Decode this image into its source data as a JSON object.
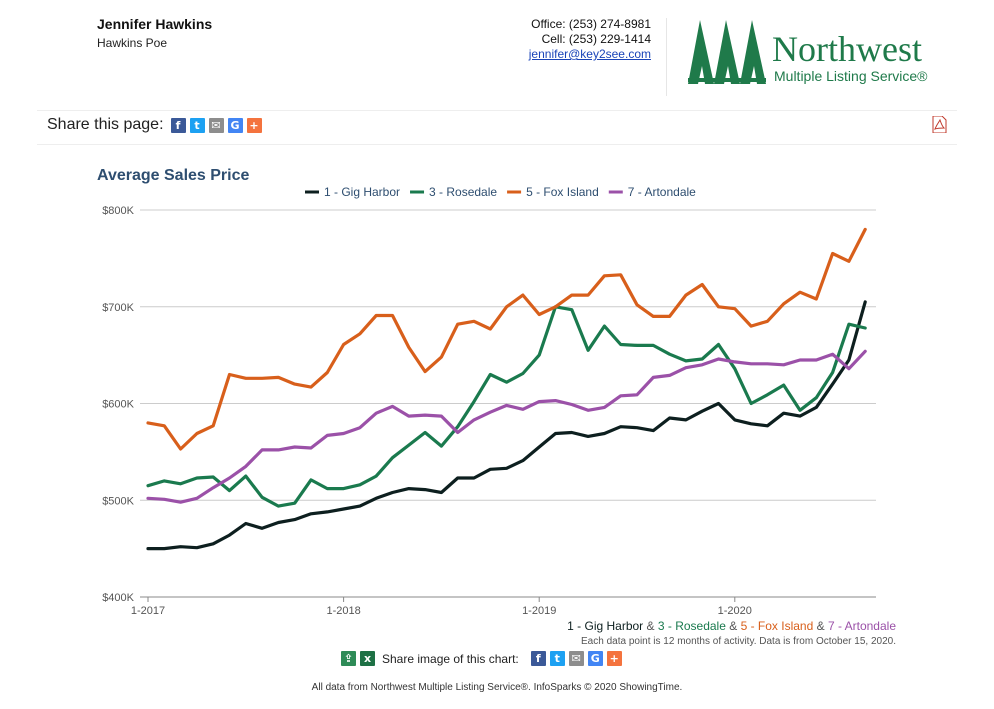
{
  "agent": {
    "name": "Jennifer Hawkins",
    "company": "Hawkins Poe"
  },
  "contact": {
    "office": "Office: (253) 274-8981",
    "cell": "Cell: (253) 229-1414",
    "email": "jennifer@key2see.com"
  },
  "logo": {
    "word": "Northwest",
    "sub": "Multiple Listing Service®"
  },
  "share": {
    "label": "Share this page:",
    "icons": [
      "facebook-icon",
      "twitter-icon",
      "email-icon",
      "google-icon",
      "plus-icon"
    ]
  },
  "pdf_icon": "pdf-icon",
  "chart_title": "Average Sales Price",
  "chart_data": {
    "type": "line",
    "ylim": [
      400000,
      800000
    ],
    "yticks": [
      400000,
      500000,
      600000,
      700000,
      800000
    ],
    "ytick_labels": [
      "$400K",
      "$500K",
      "$600K",
      "$700K",
      "$800K"
    ],
    "xtick_labels": [
      "1-2017",
      "1-2018",
      "1-2019",
      "1-2020"
    ],
    "x": [
      "2017-01",
      "2017-02",
      "2017-03",
      "2017-04",
      "2017-05",
      "2017-06",
      "2017-07",
      "2017-08",
      "2017-09",
      "2017-10",
      "2017-11",
      "2017-12",
      "2018-01",
      "2018-02",
      "2018-03",
      "2018-04",
      "2018-05",
      "2018-06",
      "2018-07",
      "2018-08",
      "2018-09",
      "2018-10",
      "2018-11",
      "2018-12",
      "2019-01",
      "2019-02",
      "2019-03",
      "2019-04",
      "2019-05",
      "2019-06",
      "2019-07",
      "2019-08",
      "2019-09",
      "2019-10",
      "2019-11",
      "2019-12",
      "2020-01",
      "2020-02",
      "2020-03",
      "2020-04",
      "2020-05",
      "2020-06",
      "2020-07",
      "2020-08",
      "2020-09"
    ],
    "grid": true,
    "legend_position": "top",
    "series": [
      {
        "name": "1 - Gig Harbor",
        "color": "#0d1f1f",
        "values": [
          450000,
          450000,
          452000,
          451000,
          455000,
          464000,
          476000,
          471000,
          477000,
          480000,
          486000,
          488000,
          491000,
          494000,
          502000,
          508000,
          512000,
          511000,
          508000,
          523000,
          523000,
          532000,
          533000,
          541000,
          555000,
          569000,
          570000,
          566000,
          569000,
          576000,
          575000,
          572000,
          585000,
          583000,
          592000,
          600000,
          583000,
          579000,
          577000,
          590000,
          587000,
          596000,
          620000,
          645000,
          705000
        ]
      },
      {
        "name": "3 - Rosedale",
        "color": "#1a7a4e",
        "values": [
          515000,
          520000,
          517000,
          523000,
          524000,
          510000,
          525000,
          503000,
          494000,
          497000,
          521000,
          512000,
          512000,
          516000,
          525000,
          544000,
          557000,
          570000,
          556000,
          576000,
          602000,
          630000,
          622000,
          631000,
          650000,
          700000,
          697000,
          655000,
          680000,
          661000,
          660000,
          660000,
          651000,
          644000,
          646000,
          661000,
          636000,
          600000,
          609000,
          619000,
          593000,
          606000,
          632000,
          682000,
          678000
        ]
      },
      {
        "name": "5 - Fox Island",
        "color": "#d85f1b",
        "values": [
          580000,
          577000,
          553000,
          569000,
          577000,
          630000,
          626000,
          626000,
          627000,
          620000,
          617000,
          632000,
          661000,
          672000,
          691000,
          691000,
          658000,
          633000,
          648000,
          682000,
          685000,
          677000,
          700000,
          712000,
          692000,
          700000,
          712000,
          712000,
          732000,
          733000,
          702000,
          690000,
          690000,
          712000,
          723000,
          700000,
          698000,
          680000,
          685000,
          703000,
          715000,
          708000,
          755000,
          747000,
          780000
        ]
      },
      {
        "name": "7 - Artondale",
        "color": "#9b51a8",
        "values": [
          502000,
          501000,
          498000,
          502000,
          513000,
          523000,
          535000,
          552000,
          552000,
          555000,
          554000,
          567000,
          569000,
          575000,
          590000,
          597000,
          587000,
          588000,
          587000,
          570000,
          583000,
          591000,
          598000,
          594000,
          602000,
          603000,
          599000,
          593000,
          596000,
          608000,
          609000,
          627000,
          629000,
          637000,
          640000,
          646000,
          643000,
          641000,
          641000,
          640000,
          645000,
          645000,
          651000,
          636000,
          654000
        ]
      }
    ]
  },
  "credits": {
    "line1_parts": [
      {
        "text": "1 - Gig Harbor",
        "color": "#0d1f1f"
      },
      {
        "text": " & ",
        "color": "#555555"
      },
      {
        "text": "3 - Rosedale",
        "color": "#1a7a4e"
      },
      {
        "text": " & ",
        "color": "#555555"
      },
      {
        "text": "5 - Fox Island",
        "color": "#d85f1b"
      },
      {
        "text": " & ",
        "color": "#555555"
      },
      {
        "text": "7 - Artondale",
        "color": "#9b51a8"
      }
    ],
    "line2": "Each data point is 12 months of activity. Data is from October 15, 2020."
  },
  "share_chart": {
    "label": "Share image of this chart:"
  },
  "footer": "All data from Northwest Multiple Listing Service®. InfoSparks © 2020 ShowingTime."
}
